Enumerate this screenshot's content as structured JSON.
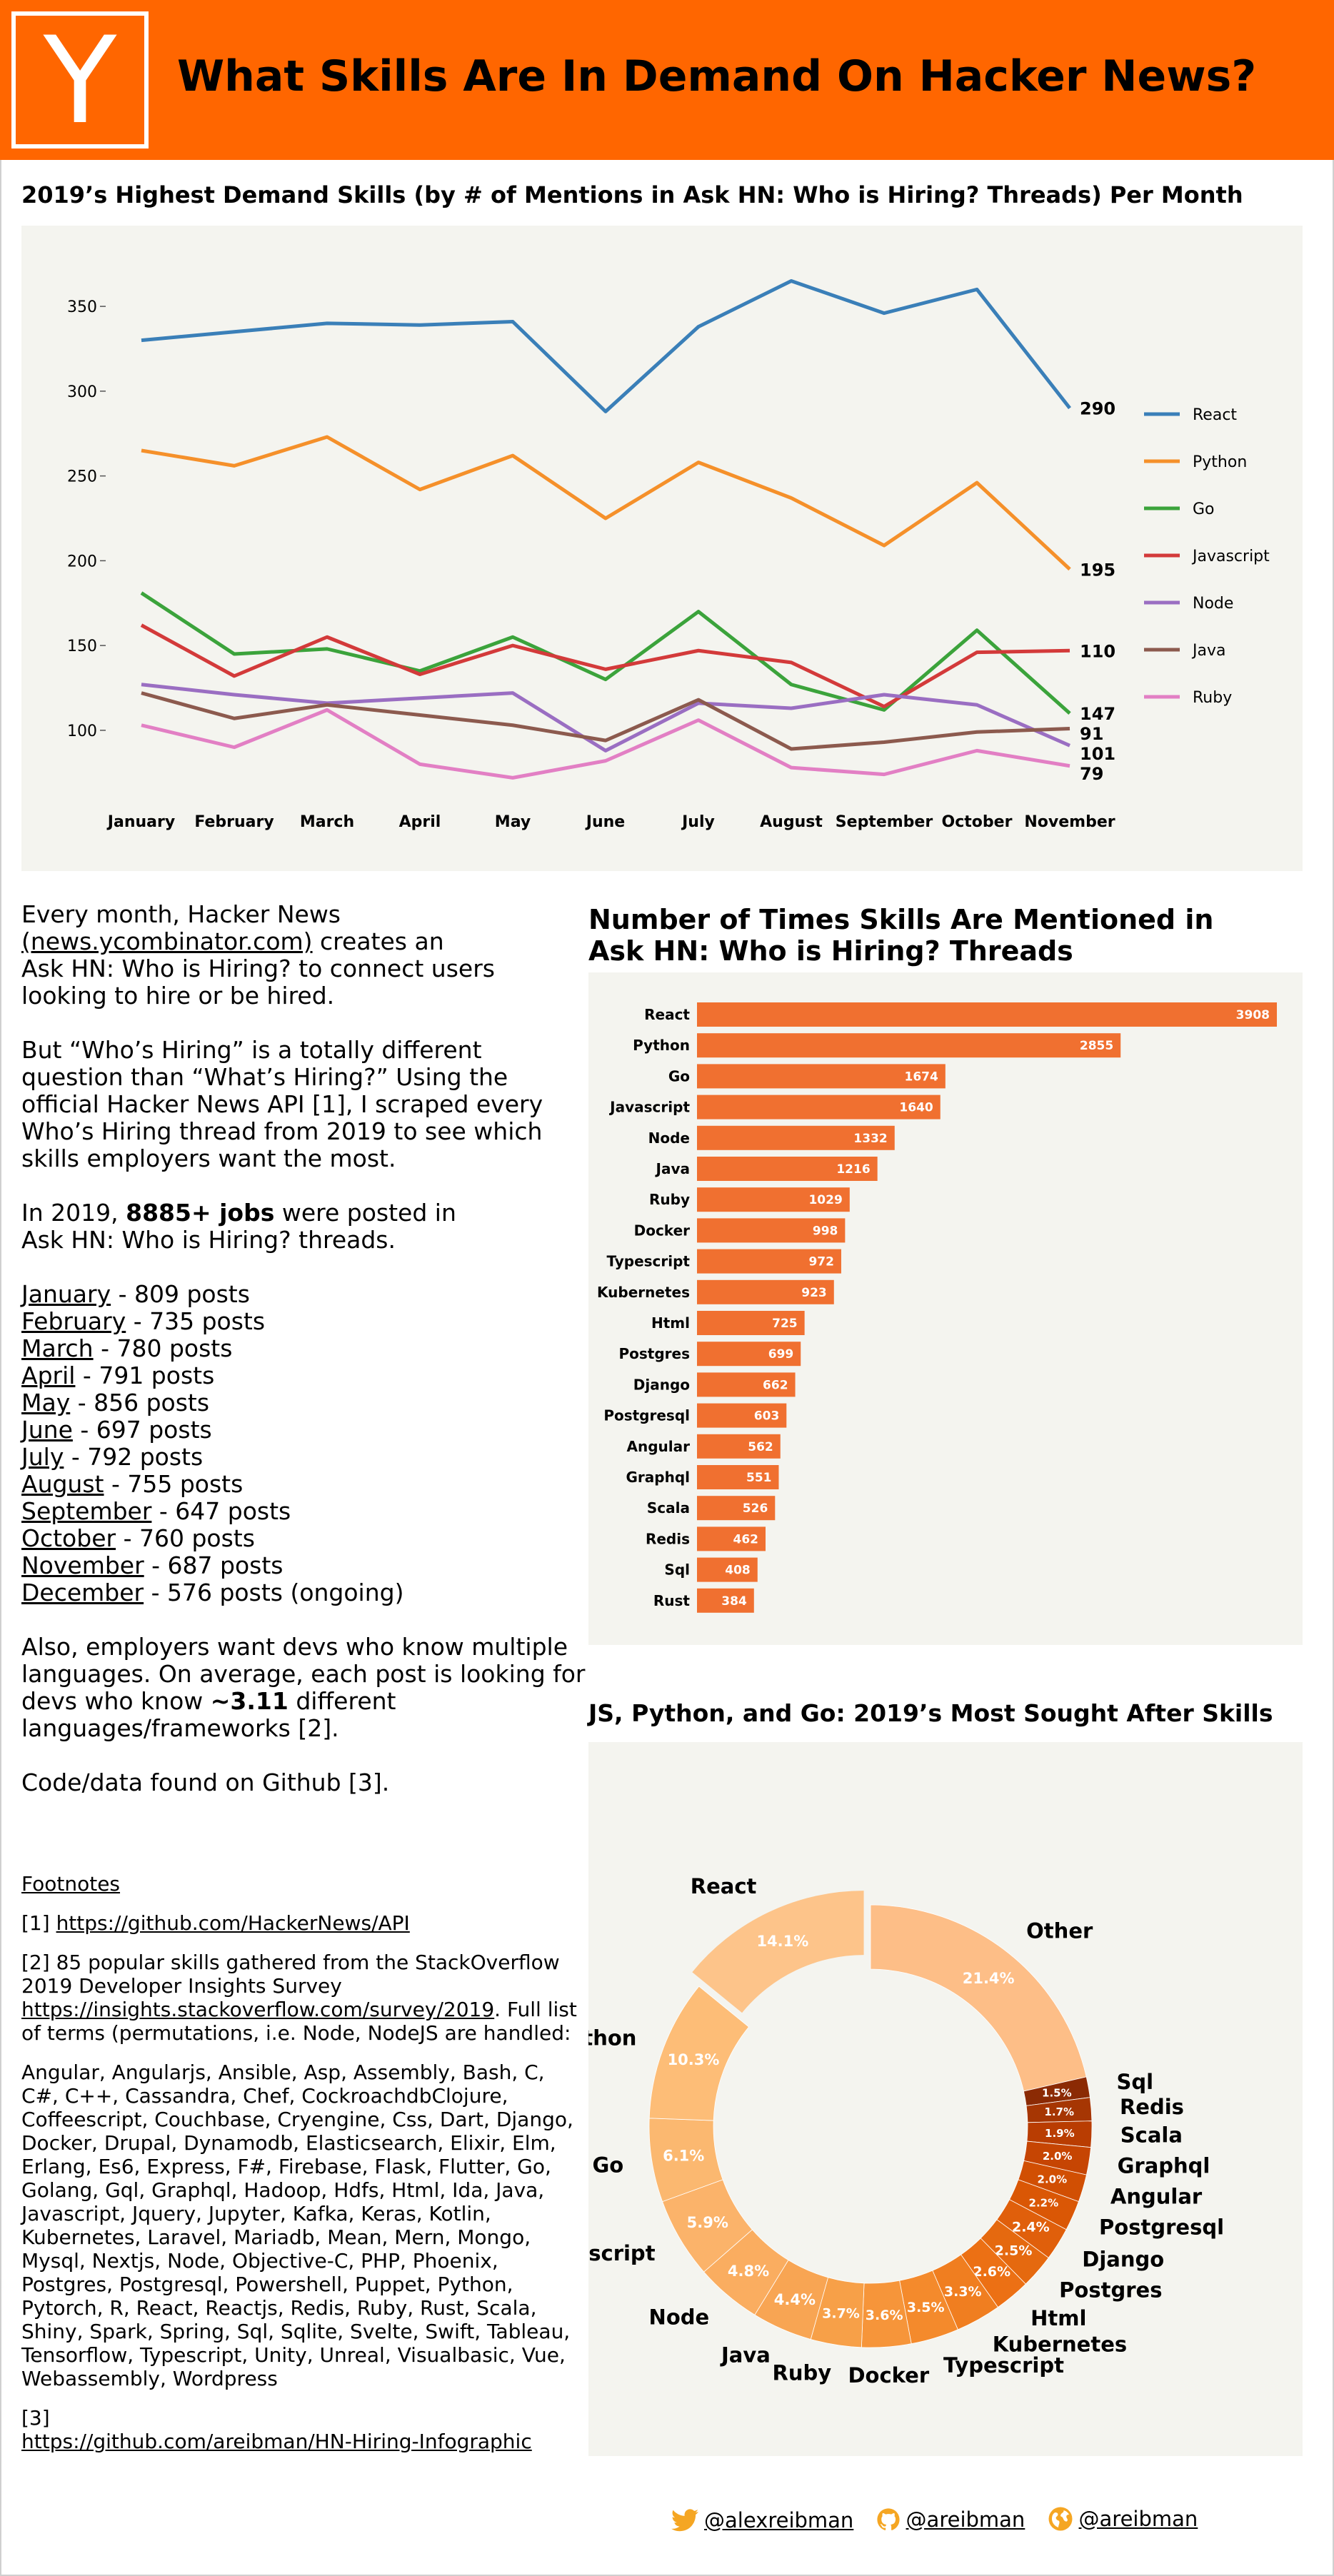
{
  "header": {
    "logo_letter": "Y",
    "title": "What Skills Are In Demand On Hacker News?"
  },
  "line_chart_title": "2019’s Highest Demand Skills (by # of Mentions in Ask HN: Who is Hiring? Threads) Per Month",
  "bar_chart_title_lines": [
    "Number of Times Skills Are Mentioned in",
    "Ask HN: Who is Hiring? Threads"
  ],
  "donut_chart_title": "JS, Python, and Go: 2019’s Most Sought After Skills",
  "intro": {
    "p1_a": "Every month, Hacker News",
    "p1_link": "(news.ycombinator.com)",
    "p1_b": " creates an",
    "p1_c": "Ask HN: Who is Hiring? to connect users looking to hire or be hired.",
    "p2": "But “Who’s Hiring” is a totally different question than “What’s Hiring?” Using the official Hacker News API [1], I scraped every Who’s Hiring thread from 2019 to see which skills employers want the most.",
    "p3_a": "In 2019, ",
    "p3_b": "8885+ jobs",
    "p3_c": " were posted in",
    "p3_d": "Ask HN: Who is Hiring? threads.",
    "months": [
      {
        "month": "January",
        "rest": " - 809 posts"
      },
      {
        "month": "February",
        "rest": " - 735 posts"
      },
      {
        "month": "March",
        "rest": " - 780 posts"
      },
      {
        "month": "April",
        "rest": " - 791 posts"
      },
      {
        "month": "May",
        "rest": " - 856 posts"
      },
      {
        "month": "June",
        "rest": " - 697 posts"
      },
      {
        "month": "July",
        "rest": " - 792 posts"
      },
      {
        "month": "August",
        "rest": " - 755 posts"
      },
      {
        "month": "September",
        "rest": " - 647 posts"
      },
      {
        "month": "October",
        "rest": " - 760 posts"
      },
      {
        "month": "November",
        "rest": " - 687 posts"
      },
      {
        "month": "December",
        "rest": " - 576 posts (ongoing)"
      }
    ],
    "p4_a": "Also, employers want devs who know multiple languages. On average, each post is looking for devs who know ",
    "p4_b": "~3.11",
    "p4_c": " different languages/frameworks [2].",
    "p5": "Code/data found on Github [3]."
  },
  "footnotes": {
    "heading": "Footnotes",
    "f1_prefix": "[1] ",
    "f1_link": "https://github.com/HackerNews/API",
    "f2_prefix": "[2]  85 popular skills gathered from the StackOverflow 2019 Developer Insights Survey ",
    "f2_link": "https://insights.stackoverflow.com/survey/2019",
    "f2_suffix": ". Full list of terms (permutations, i.e. Node, NodeJS are handled:",
    "terms": "Angular, Angularjs, Ansible, Asp, Assembly, Bash, C, C#, C++, Cassandra, Chef, CockroachdbClojure, Coffeescript, Couchbase, Cryengine, Css, Dart, Django, Docker, Drupal, Dynamodb, Elasticsearch, Elixir, Elm, Erlang, Es6, Express, F#, Firebase, Flask, Flutter, Go, Golang, Gql, Graphql, Hadoop, Hdfs, Html, Ida, Java, Javascript, Jquery, Jupyter, Kafka, Keras, Kotlin, Kubernetes, Laravel, Mariadb, Mean, Mern, Mongo, Mysql, Nextjs, Node, Objective-C, PHP, Phoenix, Postgres, Postgresql, Powershell, Puppet, Python, Pytorch, R, React, Reactjs, Redis, Ruby, Rust, Scala, Shiny, Spark, Spring, Sql, Sqlite, Svelte, Swift, Tableau, Tensorflow, Typescript, Unity, Unreal, Visualbasic, Vue, Webassembly, Wordpress",
    "f3_prefix": "[3]",
    "f3_link": "https://github.com/areibman/HN-Hiring-Infographic"
  },
  "social": [
    {
      "icon": "twitter-bird-icon",
      "handle": "@alexreibman"
    },
    {
      "icon": "github-octocat-icon",
      "handle": "@areibman"
    },
    {
      "icon": "globe-icon",
      "handle": "@areibman"
    }
  ],
  "colors": {
    "brand": "#ff6600",
    "panel": "#f4f4ef",
    "bar": "#f07030"
  },
  "chart_data": [
    {
      "type": "line",
      "x": [
        "January",
        "February",
        "March",
        "April",
        "May",
        "June",
        "July",
        "August",
        "September",
        "October",
        "November"
      ],
      "ylim": [
        65,
        385
      ],
      "yticks": [
        100,
        150,
        200,
        250,
        300,
        350
      ],
      "legend_position": "right",
      "series": [
        {
          "name": "React",
          "color": "#3a7fb8",
          "values": [
            330,
            335,
            340,
            339,
            341,
            288,
            338,
            365,
            346,
            360,
            290
          ]
        },
        {
          "name": "Python",
          "color": "#f5902a",
          "values": [
            265,
            256,
            273,
            242,
            262,
            225,
            258,
            237,
            209,
            246,
            195
          ]
        },
        {
          "name": "Go",
          "color": "#3ba33b",
          "values": [
            181,
            145,
            148,
            135,
            155,
            130,
            170,
            127,
            112,
            159,
            110
          ]
        },
        {
          "name": "Javascript",
          "color": "#d33a3a",
          "values": [
            162,
            132,
            155,
            133,
            150,
            136,
            147,
            140,
            114,
            146,
            147
          ]
        },
        {
          "name": "Node",
          "color": "#9a6ec2",
          "values": [
            127,
            121,
            116,
            119,
            122,
            88,
            116,
            113,
            121,
            115,
            91
          ]
        },
        {
          "name": "Java",
          "color": "#8c5a4e",
          "values": [
            122,
            107,
            115,
            109,
            103,
            94,
            118,
            89,
            93,
            99,
            101
          ]
        },
        {
          "name": "Ruby",
          "color": "#e27fc4",
          "values": [
            103,
            90,
            112,
            80,
            72,
            82,
            106,
            78,
            74,
            88,
            79
          ]
        }
      ],
      "end_labels": [
        "290",
        "195",
        "147",
        "110",
        "101",
        "91",
        "79"
      ]
    },
    {
      "type": "bar",
      "orientation": "horizontal",
      "categories": [
        "React",
        "Python",
        "Go",
        "Javascript",
        "Node",
        "Java",
        "Ruby",
        "Docker",
        "Typescript",
        "Kubernetes",
        "Html",
        "Postgres",
        "Django",
        "Postgresql",
        "Angular",
        "Graphql",
        "Scala",
        "Redis",
        "Sql",
        "Rust"
      ],
      "values": [
        3908,
        2855,
        1674,
        1640,
        1332,
        1216,
        1029,
        998,
        972,
        923,
        725,
        699,
        662,
        603,
        562,
        551,
        526,
        462,
        408,
        384
      ],
      "xlim": [
        0,
        4000
      ]
    },
    {
      "type": "pie",
      "donut": true,
      "labels": [
        "Other",
        "Sql",
        "Redis",
        "Scala",
        "Graphql",
        "Angular",
        "Postgresql",
        "Django",
        "Postgres",
        "Html",
        "Kubernetes",
        "Typescript",
        "Docker",
        "Ruby",
        "Java",
        "Node",
        "Javascript",
        "Go",
        "Python",
        "React"
      ],
      "pct_labels": [
        "21.4%",
        "1.5%",
        "1.7%",
        "1.9%",
        "2.0%",
        "2.0%",
        "2.2%",
        "2.4%",
        "2.5%",
        "2.6%",
        "3.3%",
        "3.5%",
        "3.6%",
        "3.7%",
        "4.4%",
        "4.8%",
        "5.9%",
        "6.1%",
        "10.3%",
        "14.1%"
      ],
      "values": [
        21.4,
        1.5,
        1.7,
        1.9,
        2.0,
        2.0,
        2.2,
        2.4,
        2.5,
        2.6,
        3.3,
        3.5,
        3.6,
        3.7,
        4.4,
        4.8,
        5.9,
        6.1,
        10.3,
        14.1
      ],
      "exploded": [
        "React"
      ],
      "colors": [
        "#fdbe87",
        "#8b2a04",
        "#a63603",
        "#b93d02",
        "#c64503",
        "#d14f03",
        "#da5705",
        "#e05f0b",
        "#e5690f",
        "#ec7014",
        "#f07e20",
        "#f48a2c",
        "#f6953a",
        "#f7a048",
        "#f8a553",
        "#faad60",
        "#fbb36a",
        "#fbb870",
        "#fdbd77",
        "#fdc48a"
      ]
    }
  ]
}
